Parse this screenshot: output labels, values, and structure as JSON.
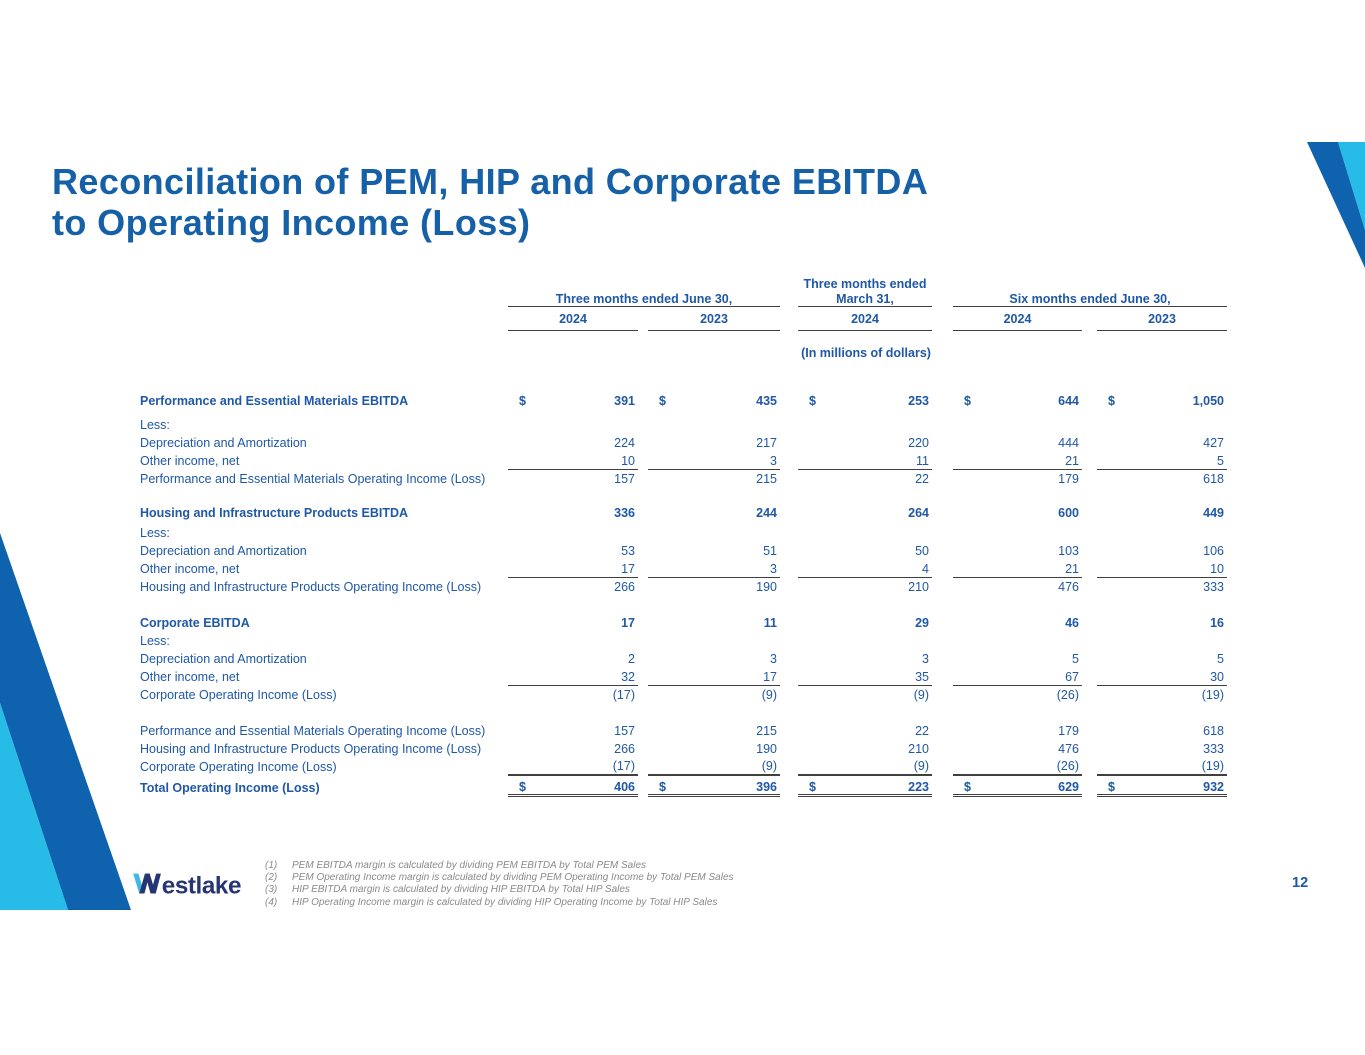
{
  "slide": {
    "title_lines": [
      "Reconciliation of PEM, HIP and Corporate EBITDA",
      "to Operating Income (Loss)"
    ],
    "units_note": "(In millions of dollars)",
    "page_number": "12"
  },
  "colors": {
    "title_blue": "#1560A7",
    "table_blue": "#1F58A6",
    "band_dark_blue": "#0E62AE",
    "band_cyan": "#27BCE8",
    "logo_navy": "#273572",
    "logo_cyan": "#3FB9E4",
    "rule_gray": "#404040",
    "footnote_gray": "#8a8a8a"
  },
  "table": {
    "groups": [
      {
        "label_lines": [
          "Three months ended June 30,"
        ],
        "years": [
          "2024",
          "2023"
        ]
      },
      {
        "label_lines": [
          "Three months ended",
          "March 31,"
        ],
        "years": [
          "2024"
        ]
      },
      {
        "label_lines": [
          "Six months ended June 30,"
        ],
        "years": [
          "2024",
          "2023"
        ]
      }
    ],
    "rows": [
      {
        "type": "section-header",
        "label": "Performance and Essential Materials EBITDA",
        "dollar": true,
        "bold": true,
        "values": [
          "391",
          "435",
          "253",
          "644",
          "1,050"
        ],
        "gap": 0
      },
      {
        "type": "plain",
        "label": "Less:",
        "values": [],
        "gap": 6
      },
      {
        "type": "plain",
        "label": "Depreciation and Amortization",
        "values": [
          "224",
          "217",
          "220",
          "444",
          "427"
        ],
        "gap": 0
      },
      {
        "type": "plain",
        "label": "Other income, net",
        "values": [
          "10",
          "3",
          "11",
          "21",
          "5"
        ],
        "underline": true,
        "gap": 0
      },
      {
        "type": "subtotal",
        "label": "Performance and Essential Materials Operating Income (Loss)",
        "values": [
          "157",
          "215",
          "22",
          "179",
          "618"
        ],
        "gap": 0
      },
      {
        "type": "section-header",
        "label": "Housing and Infrastructure Products EBITDA",
        "bold": true,
        "values": [
          "336",
          "244",
          "264",
          "600",
          "449"
        ],
        "gap": 16
      },
      {
        "type": "plain",
        "label": "Less:",
        "values": [],
        "gap": 2
      },
      {
        "type": "plain",
        "label": "Depreciation and Amortization",
        "values": [
          "53",
          "51",
          "50",
          "103",
          "106"
        ],
        "gap": 0
      },
      {
        "type": "plain",
        "label": "Other income, net",
        "values": [
          "17",
          "3",
          "4",
          "21",
          "10"
        ],
        "underline": true,
        "gap": 0
      },
      {
        "type": "subtotal",
        "label": "Housing and Infrastructure Products Operating Income (Loss)",
        "values": [
          "266",
          "190",
          "210",
          "476",
          "333"
        ],
        "gap": 0
      },
      {
        "type": "section-header",
        "label": "Corporate EBITDA",
        "bold": true,
        "values": [
          "17",
          "11",
          "29",
          "46",
          "16"
        ],
        "gap": 18
      },
      {
        "type": "plain",
        "label": "Less:",
        "values": [],
        "gap": 0
      },
      {
        "type": "plain",
        "label": "Depreciation and Amortization",
        "values": [
          "2",
          "3",
          "3",
          "5",
          "5"
        ],
        "gap": 0
      },
      {
        "type": "plain",
        "label": "Other income, net",
        "values": [
          "32",
          "17",
          "35",
          "67",
          "30"
        ],
        "underline": true,
        "gap": 0
      },
      {
        "type": "subtotal",
        "label": "Corporate Operating Income (Loss)",
        "values": [
          "(17)",
          "(9)",
          "(9)",
          "(26)",
          "(19)"
        ],
        "gap": 0
      },
      {
        "type": "summary",
        "label": "Performance and Essential Materials Operating Income (Loss)",
        "values": [
          "157",
          "215",
          "22",
          "179",
          "618"
        ],
        "gap": 18
      },
      {
        "type": "summary",
        "label": "Housing and Infrastructure Products Operating Income (Loss)",
        "values": [
          "266",
          "190",
          "210",
          "476",
          "333"
        ],
        "gap": 0
      },
      {
        "type": "summary",
        "label": "Corporate Operating Income (Loss)",
        "values": [
          "(17)",
          "(9)",
          "(9)",
          "(26)",
          "(19)"
        ],
        "underline2": true,
        "gap": 0
      },
      {
        "type": "total",
        "label": "Total Operating Income (Loss)",
        "dollar": true,
        "bold": true,
        "values": [
          "406",
          "396",
          "223",
          "629",
          "932"
        ],
        "double_underline": true,
        "gap": 3
      }
    ]
  },
  "footnotes": [
    {
      "num": "(1)",
      "text": "PEM EBITDA margin is calculated by dividing PEM EBITDA by Total PEM Sales"
    },
    {
      "num": "(2)",
      "text": "PEM Operating Income margin is calculated by dividing PEM Operating Income by Total PEM Sales"
    },
    {
      "num": "(3)",
      "text": "HIP EBITDA margin is calculated by dividing HIP EBITDA by Total HIP Sales"
    },
    {
      "num": "(4)",
      "text": "HIP Operating Income margin is calculated by dividing HIP Operating Income by Total HIP Sales"
    }
  ],
  "logo": {
    "name": "Westlake",
    "text_after_w": "estlake"
  }
}
